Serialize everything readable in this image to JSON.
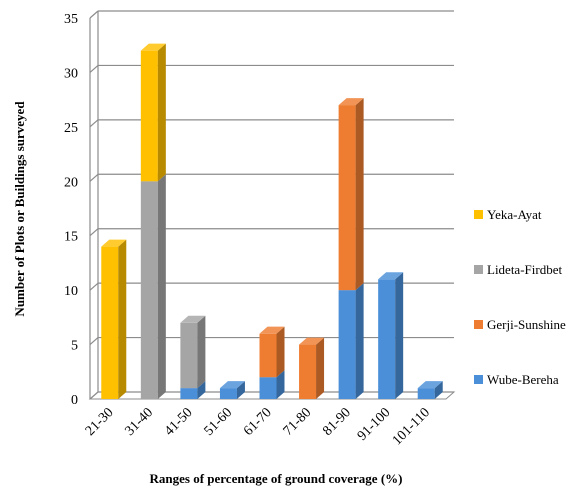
{
  "chart_data": {
    "type": "bar",
    "stacked": true,
    "style": "3d",
    "categories": [
      "21-30",
      "31-40",
      "41-50",
      "51-60",
      "61-70",
      "71-80",
      "81-90",
      "91-100",
      "101-110"
    ],
    "series": [
      {
        "name": "Wube-Bereha",
        "color": "#4a8fd8",
        "values": [
          0,
          0,
          1,
          1,
          2,
          0,
          10,
          11,
          1
        ]
      },
      {
        "name": "Gerji-Sunshine",
        "color": "#ef7d31",
        "values": [
          0,
          0,
          0,
          0,
          4,
          5,
          17,
          0,
          0
        ]
      },
      {
        "name": "Lideta-Firdbet",
        "color": "#a5a5a5",
        "values": [
          0,
          20,
          6,
          0,
          0,
          0,
          0,
          0,
          0
        ]
      },
      {
        "name": "Yeka-Ayat",
        "color": "#ffc000",
        "values": [
          14,
          12,
          0,
          0,
          0,
          0,
          0,
          0,
          0
        ]
      }
    ],
    "xlabel": "Ranges of percentage of ground coverage (%)",
    "ylabel": "Number of Plots or Buildings surveyed",
    "ylim": [
      0,
      35
    ],
    "yticks": [
      0,
      5,
      10,
      15,
      20,
      25,
      30,
      35
    ],
    "grid": true,
    "legend": {
      "position": "right",
      "order": [
        "Yeka-Ayat",
        "Lideta-Firdbet",
        "Gerji-Sunshine",
        "Wube-Bereha"
      ]
    }
  }
}
